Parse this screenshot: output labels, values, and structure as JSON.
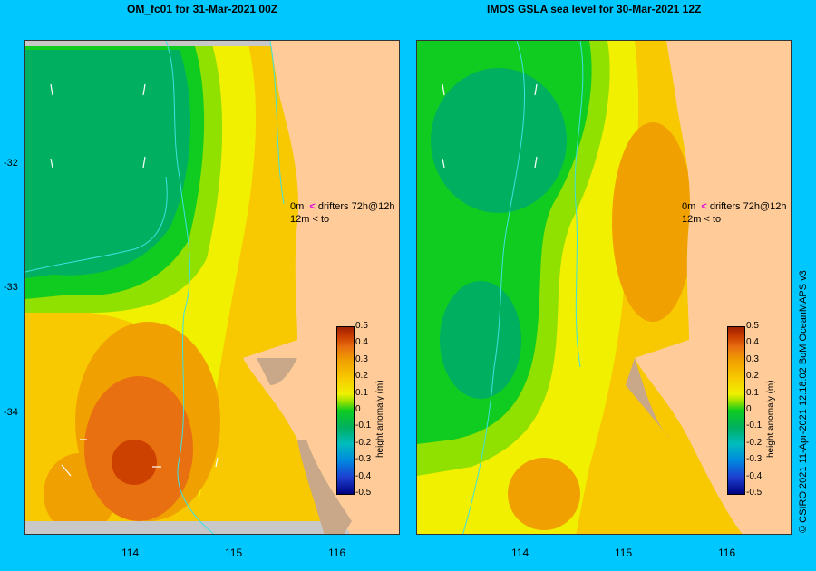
{
  "titles": {
    "left": "OM_fc01  for 31-Mar-2021 00Z",
    "right": "IMOS GSLA sea level  for 30-Mar-2021 12Z"
  },
  "axes": {
    "lat_ticks": [
      "-32",
      "-33",
      "-34"
    ],
    "lon_ticks": [
      "114",
      "115",
      "116"
    ]
  },
  "drifters": {
    "line1_prefix": "0m",
    "line1_text": "drifters 72h@12h",
    "line2_prefix": "12m",
    "line2_text": "to"
  },
  "colorbar": {
    "label": "height anomaly (m)",
    "ticks": [
      "0.5",
      "0.4",
      "0.3",
      "0.2",
      "0.1",
      "0",
      "-0.1",
      "-0.2",
      "-0.3",
      "-0.4",
      "-0.5"
    ],
    "colors": [
      "#000080",
      "#1d3fd0",
      "#0088e0",
      "#00bcbc",
      "#00b060",
      "#10cc20",
      "#90e000",
      "#f0f000",
      "#f8c800",
      "#f0a000",
      "#e87010",
      "#cc4000",
      "#a02000"
    ]
  },
  "credit": "© CSIRO 2021   11-Apr-2021 12:18:02 BoM OceanMAPS v3"
}
